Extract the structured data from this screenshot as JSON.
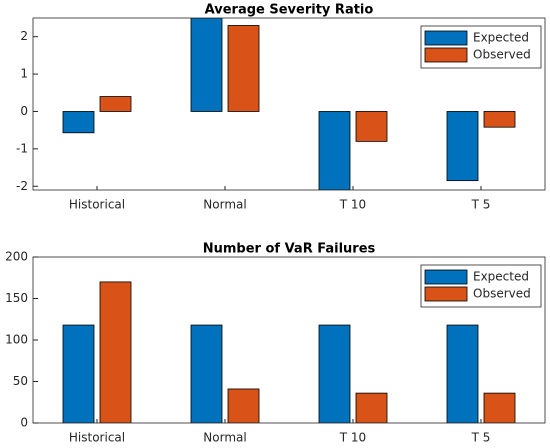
{
  "chart_data": [
    {
      "type": "bar",
      "title": "Average Severity Ratio",
      "categories": [
        "Historical",
        "Normal",
        "T 10",
        "T 5"
      ],
      "series": [
        {
          "name": "Expected",
          "color": "#0072BD",
          "values": [
            -0.57,
            2.5,
            -2.1,
            -1.85
          ]
        },
        {
          "name": "Observed",
          "color": "#D95319",
          "values": [
            0.4,
            2.3,
            -0.8,
            -0.42
          ]
        }
      ],
      "ylim": [
        -2.1,
        2.5
      ],
      "yticks": [
        -2,
        -1,
        0,
        1,
        2
      ],
      "legend": "northeast"
    },
    {
      "type": "bar",
      "title": "Number of VaR Failures",
      "categories": [
        "Historical",
        "Normal",
        "T 10",
        "T 5"
      ],
      "series": [
        {
          "name": "Expected",
          "color": "#0072BD",
          "values": [
            118,
            118,
            118,
            118
          ]
        },
        {
          "name": "Observed",
          "color": "#D95319",
          "values": [
            170,
            41,
            36,
            36
          ]
        }
      ],
      "ylim": [
        0,
        200
      ],
      "yticks": [
        0,
        50,
        100,
        150,
        200
      ],
      "legend": "northeast"
    }
  ]
}
